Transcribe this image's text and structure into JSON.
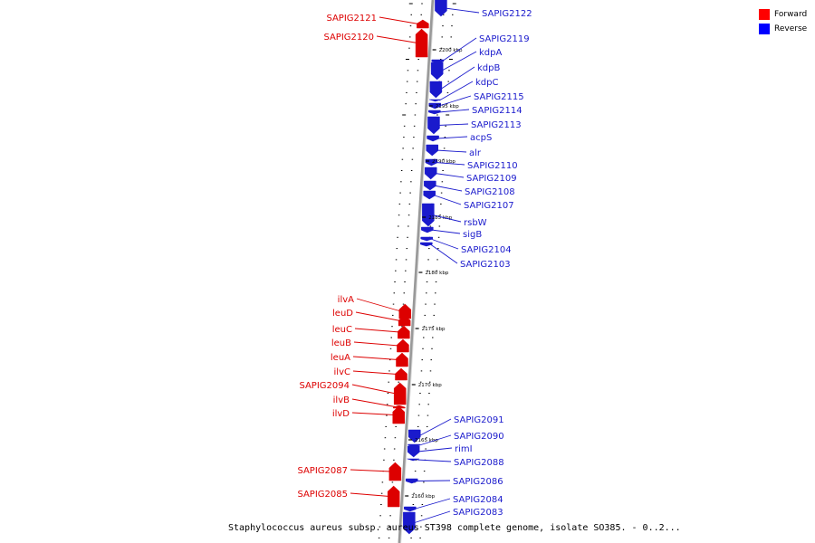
{
  "legend": [
    {
      "label": "Forward",
      "color": "#ff0000"
    },
    {
      "label": "Reverse",
      "color": "#0000ff"
    }
  ],
  "caption": "Staphylococcus aureus subsp. aureus ST398 complete genome, isolate SO385. - 0..2...",
  "colors": {
    "forward": "#dd0000",
    "reverse": "#1a1acc",
    "backbone": "#999999"
  },
  "scale_labels": [
    "2200 kbp",
    "2195 kbp",
    "2190 kbp",
    "2185 kbp",
    "2180 kbp",
    "2175 kbp",
    "2170 kbp",
    "2165 kbp",
    "2160 kbp"
  ],
  "genes": [
    {
      "name": "SAPIG2122",
      "strand": "reverse"
    },
    {
      "name": "SAPIG2121",
      "strand": "forward"
    },
    {
      "name": "SAPIG2120",
      "strand": "forward"
    },
    {
      "name": "SAPIG2119",
      "strand": "reverse"
    },
    {
      "name": "kdpA",
      "strand": "reverse"
    },
    {
      "name": "kdpB",
      "strand": "reverse"
    },
    {
      "name": "kdpC",
      "strand": "reverse"
    },
    {
      "name": "SAPIG2115",
      "strand": "reverse"
    },
    {
      "name": "SAPIG2114",
      "strand": "reverse"
    },
    {
      "name": "SAPIG2113",
      "strand": "reverse"
    },
    {
      "name": "acpS",
      "strand": "reverse"
    },
    {
      "name": "alr",
      "strand": "reverse"
    },
    {
      "name": "SAPIG2110",
      "strand": "reverse"
    },
    {
      "name": "SAPIG2109",
      "strand": "reverse"
    },
    {
      "name": "SAPIG2108",
      "strand": "reverse"
    },
    {
      "name": "SAPIG2107",
      "strand": "reverse"
    },
    {
      "name": "rsbW",
      "strand": "reverse"
    },
    {
      "name": "sigB",
      "strand": "reverse"
    },
    {
      "name": "SAPIG2104",
      "strand": "reverse"
    },
    {
      "name": "SAPIG2103",
      "strand": "reverse"
    },
    {
      "name": "ilvA",
      "strand": "forward"
    },
    {
      "name": "leuD",
      "strand": "forward"
    },
    {
      "name": "leuC",
      "strand": "forward"
    },
    {
      "name": "leuB",
      "strand": "forward"
    },
    {
      "name": "leuA",
      "strand": "forward"
    },
    {
      "name": "ilvC",
      "strand": "forward"
    },
    {
      "name": "SAPIG2094",
      "strand": "forward"
    },
    {
      "name": "ilvB",
      "strand": "forward"
    },
    {
      "name": "ilvD",
      "strand": "forward"
    },
    {
      "name": "SAPIG2091",
      "strand": "reverse"
    },
    {
      "name": "SAPIG2090",
      "strand": "reverse"
    },
    {
      "name": "rimI",
      "strand": "reverse"
    },
    {
      "name": "SAPIG2088",
      "strand": "reverse"
    },
    {
      "name": "SAPIG2087",
      "strand": "forward"
    },
    {
      "name": "SAPIG2086",
      "strand": "reverse"
    },
    {
      "name": "SAPIG2085",
      "strand": "forward"
    },
    {
      "name": "SAPIG2084",
      "strand": "reverse"
    },
    {
      "name": "SAPIG2083",
      "strand": "reverse"
    }
  ]
}
